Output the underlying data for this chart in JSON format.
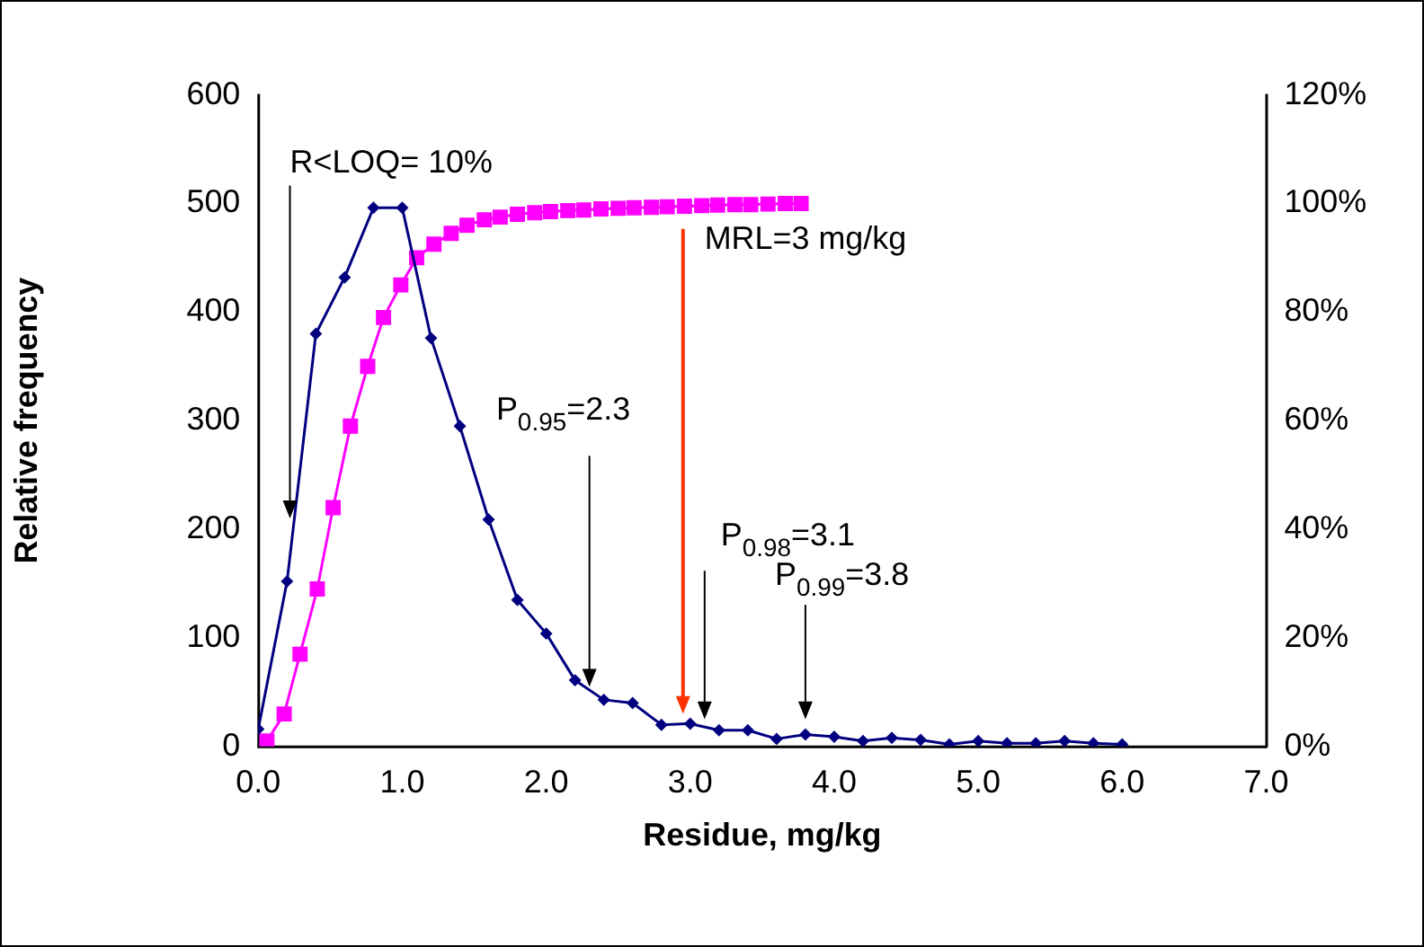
{
  "chart_data": {
    "type": "line",
    "xlabel": "Residue, mg/kg",
    "ylabel": "Relative frequency",
    "xlim": [
      0,
      7
    ],
    "xticks": [
      {
        "value": 0,
        "label": "0.0"
      },
      {
        "value": 1,
        "label": "1.0"
      },
      {
        "value": 2,
        "label": "2.0"
      },
      {
        "value": 3,
        "label": "3.0"
      },
      {
        "value": 4,
        "label": "4.0"
      },
      {
        "value": 5,
        "label": "5.0"
      },
      {
        "value": 6,
        "label": "6.0"
      },
      {
        "value": 7,
        "label": "7.0"
      }
    ],
    "ylim": [
      0,
      600
    ],
    "yticks": [
      0,
      100,
      200,
      300,
      400,
      500,
      600
    ],
    "y2lim": [
      0,
      120
    ],
    "y2ticks": [
      {
        "value": 0,
        "label": "0%"
      },
      {
        "value": 20,
        "label": "20%"
      },
      {
        "value": 40,
        "label": "40%"
      },
      {
        "value": 60,
        "label": "60%"
      },
      {
        "value": 80,
        "label": "80%"
      },
      {
        "value": 100,
        "label": "100%"
      },
      {
        "value": 120,
        "label": "120%"
      }
    ],
    "grid": false,
    "legend": false,
    "series": [
      {
        "color": "#000080",
        "marker": "diamond",
        "x": [
          0,
          0.2,
          0.4,
          0.6,
          0.8,
          1.0,
          1.2,
          1.4,
          1.6,
          1.8,
          2.0,
          2.2,
          2.4,
          2.6,
          2.8,
          3.0,
          3.2,
          3.4,
          3.6,
          3.8,
          4.0,
          4.2,
          4.4,
          4.6,
          4.8,
          5.0,
          5.2,
          5.4,
          5.6,
          5.8,
          6.0
        ],
        "values": [
          16,
          152,
          380,
          432,
          496,
          496,
          376,
          295,
          209,
          135,
          104,
          61,
          43,
          40,
          20,
          21,
          15,
          15,
          7,
          11,
          9,
          5,
          8,
          6,
          2,
          5,
          3,
          3,
          5,
          3,
          2
        ]
      },
      {
        "color": "#ff00ff",
        "marker": "square",
        "axis": "y2",
        "x": [
          0.06,
          0.18,
          0.29,
          0.41,
          0.52,
          0.64,
          0.76,
          0.87,
          0.99,
          1.1,
          1.22,
          1.34,
          1.45,
          1.57,
          1.68,
          1.8,
          1.92,
          2.03,
          2.15,
          2.26,
          2.38,
          2.5,
          2.61,
          2.73,
          2.84,
          2.96,
          3.08,
          3.19,
          3.31,
          3.42,
          3.54,
          3.66,
          3.77
        ],
        "values": [
          1,
          6,
          17,
          29,
          44,
          59,
          70,
          79,
          85,
          90,
          92.5,
          94.5,
          96,
          97,
          97.5,
          98,
          98.3,
          98.5,
          98.7,
          98.8,
          99,
          99.1,
          99.2,
          99.3,
          99.4,
          99.5,
          99.6,
          99.7,
          99.8,
          99.8,
          99.9,
          100,
          100
        ]
      }
    ],
    "annotations": [
      {
        "text": "R<LOQ= 10%",
        "x": 0.22,
        "y": 210
      },
      {
        "text": "MRL=3 mg/kg",
        "x": 2.95,
        "y": 30
      },
      {
        "text": "P$_{0.95}$=2.3",
        "x": 2.3,
        "y": 55
      },
      {
        "text": "P$_{0.98}$=3.1",
        "x": 3.1,
        "y": 25
      },
      {
        "text": "P$_{0.99}$=3.8",
        "x": 3.8,
        "y": 25
      }
    ]
  }
}
